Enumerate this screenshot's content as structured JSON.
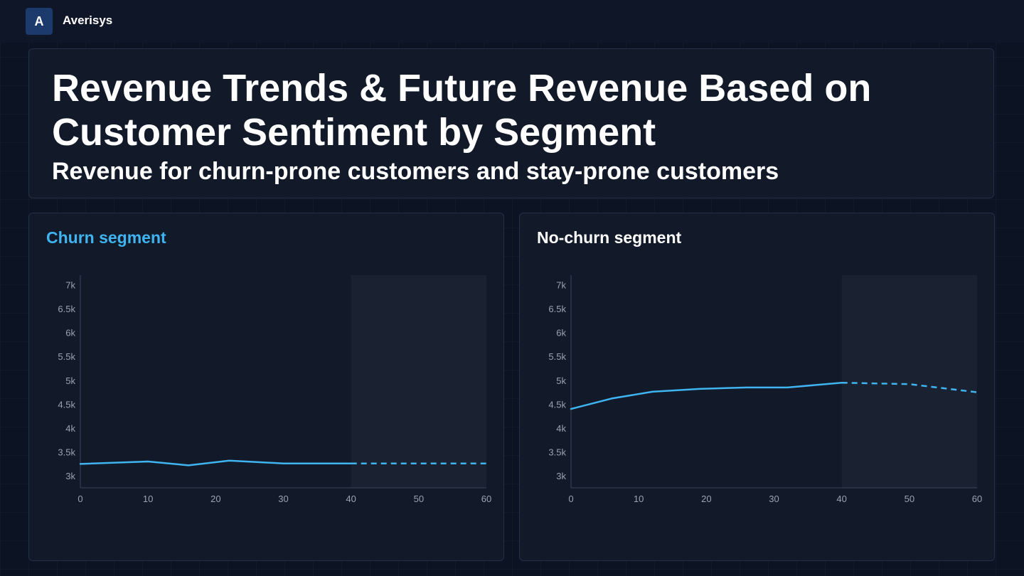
{
  "header": {
    "logo_letter": "A",
    "brand": "Averisys"
  },
  "hero": {
    "title": "Revenue Trends & Future Revenue Based on Customer Sentiment by Segment",
    "subtitle": "Revenue for churn-prone customers and stay-prone customers"
  },
  "colors": {
    "accent": "#3fb4f0",
    "title_white": "#ffffff"
  },
  "chart_data": [
    {
      "type": "line",
      "title": "Churn segment",
      "title_color": "#3fb4f0",
      "xlabel": "",
      "ylabel": "",
      "xlim": [
        0,
        60
      ],
      "ylim": [
        2750,
        7200
      ],
      "x_ticks": [
        0,
        10,
        20,
        30,
        40,
        50,
        60
      ],
      "y_ticks": [
        3000,
        3500,
        4000,
        4500,
        5000,
        5500,
        6000,
        6500,
        7000
      ],
      "y_tick_labels": [
        "3k",
        "3.5k",
        "4k",
        "4.5k",
        "5k",
        "5.5k",
        "6k",
        "6.5k",
        "7k"
      ],
      "forecast_start": 40,
      "grid": false,
      "series": [
        {
          "actual": {
            "x": [
              0,
              10,
              16,
              22,
              30,
              40
            ],
            "y": [
              3250,
              3300,
              3220,
              3320,
              3260,
              3260
            ]
          },
          "forecast": {
            "x": [
              40,
              60
            ],
            "y": [
              3260,
              3260
            ]
          }
        }
      ]
    },
    {
      "type": "line",
      "title": "No-churn segment",
      "title_color": "#ffffff",
      "xlabel": "",
      "ylabel": "",
      "xlim": [
        0,
        60
      ],
      "ylim": [
        2750,
        7200
      ],
      "x_ticks": [
        0,
        10,
        20,
        30,
        40,
        50,
        60
      ],
      "y_ticks": [
        3000,
        3500,
        4000,
        4500,
        5000,
        5500,
        6000,
        6500,
        7000
      ],
      "y_tick_labels": [
        "3k",
        "3.5k",
        "4k",
        "4.5k",
        "5k",
        "5.5k",
        "6k",
        "6.5k",
        "7k"
      ],
      "forecast_start": 40,
      "grid": false,
      "series": [
        {
          "actual": {
            "x": [
              0,
              6,
              12,
              19,
              26,
              32,
              40
            ],
            "y": [
              4400,
              4620,
              4760,
              4820,
              4850,
              4850,
              4950
            ]
          },
          "forecast": {
            "x": [
              40,
              50,
              60
            ],
            "y": [
              4950,
              4920,
              4750
            ]
          }
        }
      ]
    }
  ]
}
